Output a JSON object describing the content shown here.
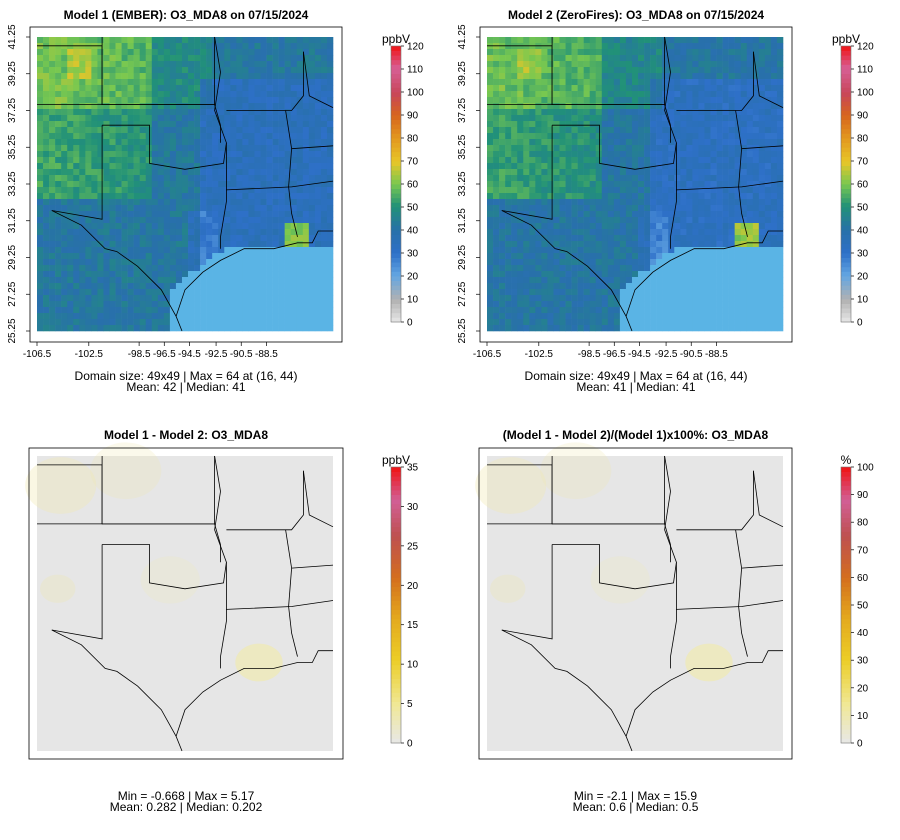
{
  "chart_data": [
    {
      "type": "heatmap",
      "title": "Model 1 (EMBER): O3_MDA8 on 07/15/2024",
      "unit": "ppbV",
      "x_ticks": [
        "-106.5",
        "-102.5",
        "-98.5",
        "-96.5",
        "-94.5",
        "-92.5",
        "-90.5",
        "-88.5"
      ],
      "y_ticks": [
        "25.25",
        "27.25",
        "29.25",
        "31.25",
        "33.25",
        "35.25",
        "37.25",
        "39.25",
        "41.25"
      ],
      "colorbar_ticks": [
        "0",
        "10",
        "20",
        "30",
        "40",
        "50",
        "60",
        "70",
        "80",
        "90",
        "100",
        "110",
        "120"
      ],
      "colorbar_range": [
        0,
        120
      ],
      "stats_line1": "Domain size: 49x49 | Max = 64 at (16, 44)",
      "stats_line2": "Mean: 42 |  Median: 41",
      "field_mean": 42
    },
    {
      "type": "heatmap",
      "title": "Model 2 (ZeroFires): O3_MDA8 on 07/15/2024",
      "unit": "ppbV",
      "x_ticks": [
        "-106.5",
        "-102.5",
        "-98.5",
        "-96.5",
        "-94.5",
        "-92.5",
        "-90.5",
        "-88.5"
      ],
      "y_ticks": [
        "25.25",
        "27.25",
        "29.25",
        "31.25",
        "33.25",
        "35.25",
        "37.25",
        "39.25",
        "41.25"
      ],
      "colorbar_ticks": [
        "0",
        "10",
        "20",
        "30",
        "40",
        "50",
        "60",
        "70",
        "80",
        "90",
        "100",
        "110",
        "120"
      ],
      "colorbar_range": [
        0,
        120
      ],
      "stats_line1": "Domain size: 49x49 | Max = 64 at (16, 44)",
      "stats_line2": "Mean: 41 |  Median: 41",
      "field_mean": 41
    },
    {
      "type": "heatmap",
      "title": "Model 1 - Model 2: O3_MDA8",
      "unit": "ppbV",
      "colorbar_ticks": [
        "0",
        "5",
        "10",
        "15",
        "20",
        "25",
        "30",
        "35"
      ],
      "colorbar_range": [
        0,
        35
      ],
      "stats_line1": "Min = -0.668 | Max = 5.17",
      "stats_line2": "Mean: 0.282 |  Median: 0.202",
      "field_mean": 0.282
    },
    {
      "type": "heatmap",
      "title": "(Model 1 - Model 2)/(Model 1)x100%: O3_MDA8",
      "unit": "%",
      "colorbar_ticks": [
        "0",
        "10",
        "20",
        "30",
        "40",
        "50",
        "60",
        "70",
        "80",
        "90",
        "100"
      ],
      "colorbar_range": [
        0,
        100
      ],
      "stats_line1": "Min = -2.1 | Max = 15.9",
      "stats_line2": "Mean: 0.6 |  Median: 0.5",
      "field_mean": 0.6
    }
  ],
  "colors": {
    "background": "#ffffff",
    "ocean": "#5ab4e5",
    "diff_background": "#e6e6e6",
    "border": "#000000"
  }
}
